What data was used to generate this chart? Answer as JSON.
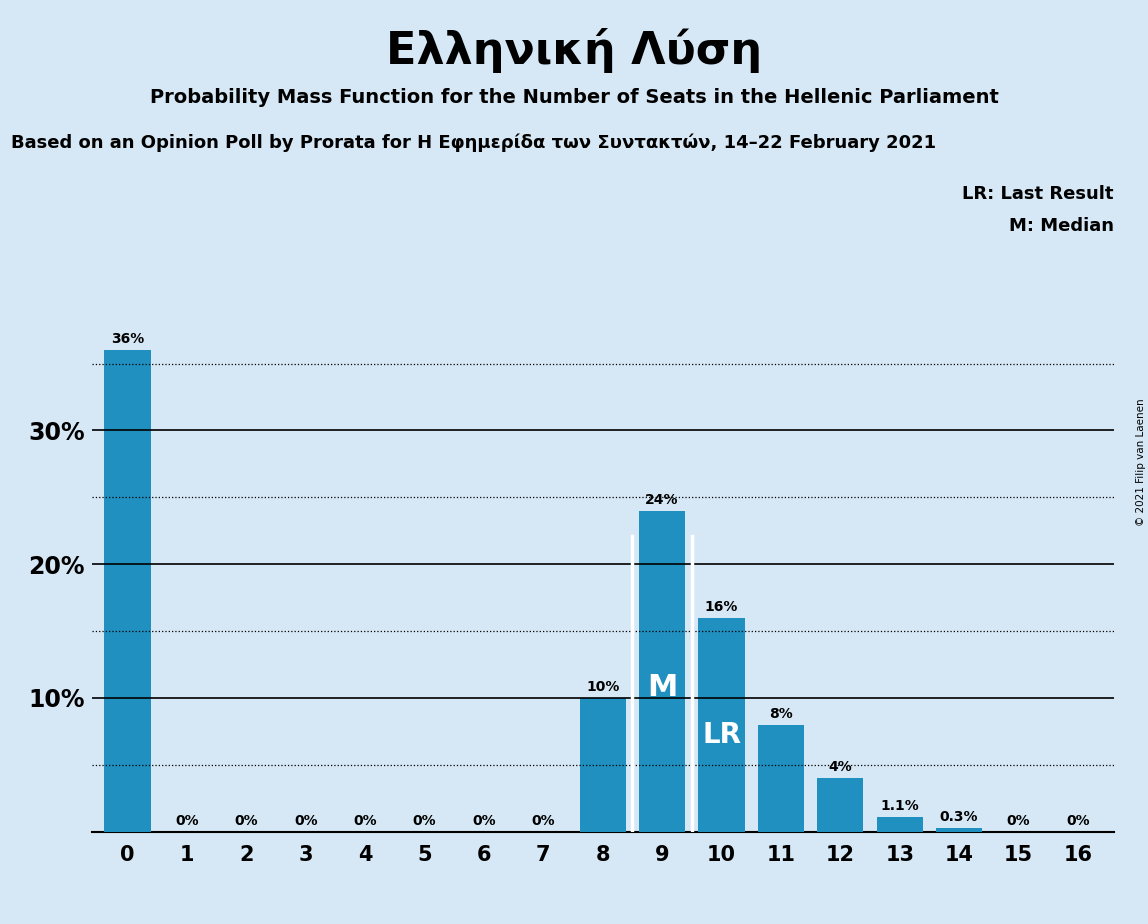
{
  "title": "Ελληνική Λύση",
  "subtitle": "Probability Mass Function for the Number of Seats in the Hellenic Parliament",
  "source_line": "Based on an Opinion Poll by Prorata for Η Εφημερίδα των Συντακτών, 14–22 February 2021",
  "copyright": "© 2021 Filip van Laenen",
  "categories": [
    0,
    1,
    2,
    3,
    4,
    5,
    6,
    7,
    8,
    9,
    10,
    11,
    12,
    13,
    14,
    15,
    16
  ],
  "values": [
    36,
    0,
    0,
    0,
    0,
    0,
    0,
    0,
    10,
    24,
    16,
    8,
    4,
    1.1,
    0.3,
    0,
    0
  ],
  "bar_labels": [
    "36%",
    "0%",
    "0%",
    "0%",
    "0%",
    "0%",
    "0%",
    "0%",
    "10%",
    "24%",
    "16%",
    "8%",
    "4%",
    "1.1%",
    "0.3%",
    "0%",
    "0%"
  ],
  "bar_color": "#2090C0",
  "background_color": "#D6E8F5",
  "median_bar": 9,
  "lr_bar": 10,
  "median_label": "M",
  "lr_label": "LR",
  "legend_lr": "LR: Last Result",
  "legend_m": "M: Median",
  "ylim": [
    0,
    38
  ],
  "dotted_lines": [
    5,
    15,
    25,
    35
  ],
  "solid_lines": [
    10,
    20,
    30
  ],
  "ytick_labels": [
    "",
    "10%",
    "20%",
    "30%"
  ],
  "ytick_vals": [
    0,
    10,
    20,
    30
  ]
}
